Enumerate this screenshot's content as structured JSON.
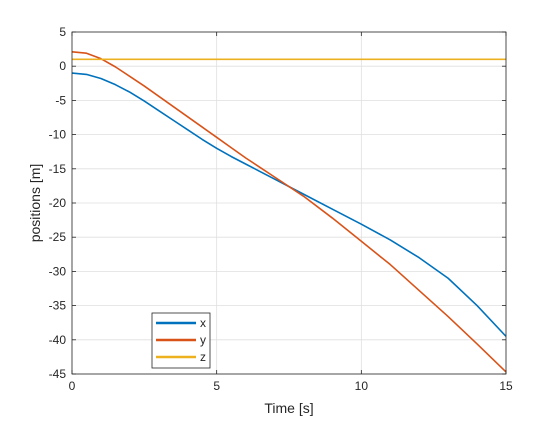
{
  "chart_data": {
    "type": "line",
    "xlabel": "Time [s]",
    "ylabel": "positions [m]",
    "xlim": [
      0,
      15
    ],
    "ylim": [
      -45,
      5
    ],
    "xticks": [
      0,
      5,
      10,
      15
    ],
    "yticks": [
      5,
      0,
      -5,
      -10,
      -15,
      -20,
      -25,
      -30,
      -35,
      -40,
      -45
    ],
    "grid": true,
    "legend_location": "bottom-left",
    "series": [
      {
        "name": "x",
        "color": "#0072BD",
        "x": [
          0,
          0.5,
          1,
          1.5,
          2,
          2.5,
          3,
          3.5,
          4,
          4.5,
          5,
          5.5,
          6,
          6.5,
          7,
          8,
          9,
          10,
          11,
          12,
          13,
          14,
          15
        ],
        "y": [
          -1.0,
          -1.2,
          -1.8,
          -2.7,
          -3.8,
          -5.1,
          -6.5,
          -7.9,
          -9.3,
          -10.7,
          -12.0,
          -13.2,
          -14.3,
          -15.4,
          -16.5,
          -18.7,
          -20.9,
          -23.1,
          -25.4,
          -28.0,
          -31.0,
          -35.0,
          -39.5
        ]
      },
      {
        "name": "y",
        "color": "#D95319",
        "x": [
          0,
          0.5,
          1,
          1.5,
          2,
          2.5,
          3,
          3.5,
          4,
          4.5,
          5,
          5.5,
          6,
          6.5,
          7,
          8,
          9,
          10,
          11,
          12,
          13,
          14,
          15
        ],
        "y": [
          2.1,
          1.9,
          1.1,
          -0.1,
          -1.5,
          -2.9,
          -4.4,
          -5.9,
          -7.4,
          -8.9,
          -10.4,
          -11.9,
          -13.4,
          -14.8,
          -16.2,
          -19.0,
          -22.2,
          -25.6,
          -29.0,
          -32.8,
          -36.6,
          -40.6,
          -44.7
        ]
      },
      {
        "name": "z",
        "color": "#EDB120",
        "x": [
          0,
          15
        ],
        "y": [
          1.0,
          1.0
        ]
      }
    ]
  }
}
